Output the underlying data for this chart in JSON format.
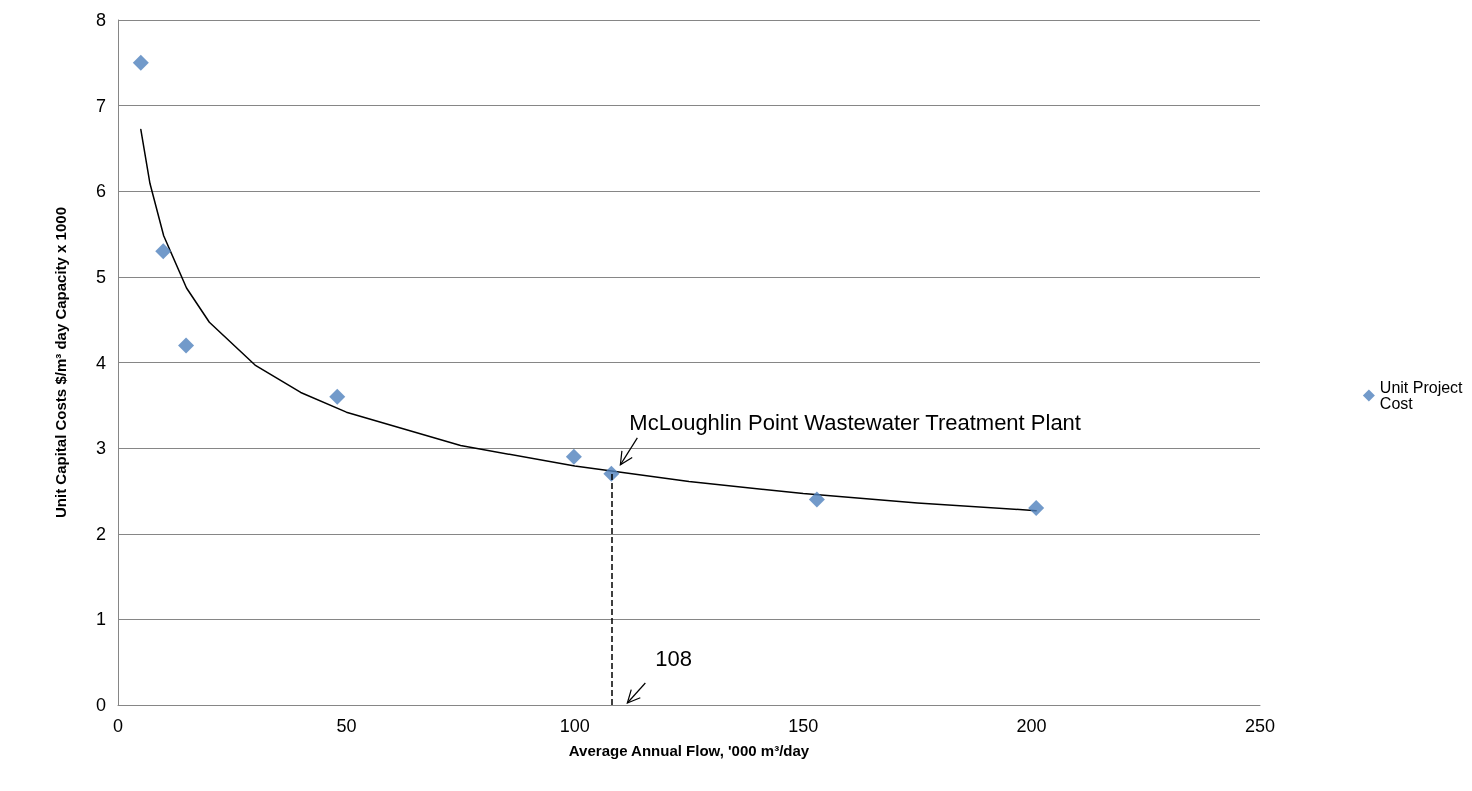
{
  "chart_data": {
    "type": "scatter",
    "xlabel": "Average Annual Flow, '000 m³/day",
    "ylabel": "Unit Capital Costs $/m³ day Capacity x 1000",
    "series": [
      {
        "name": "Unit Project Cost",
        "color": "#4f81bd",
        "marker": "diamond",
        "x": [
          5,
          9.9,
          14.9,
          48,
          99.8,
          108,
          153,
          201
        ],
        "values": [
          7.5,
          5.3,
          4.2,
          3.6,
          2.9,
          2.7,
          2.4,
          2.3
        ]
      },
      {
        "type": "line",
        "color": "#000000",
        "marker": "none",
        "line_style": "solid",
        "x": [
          5,
          7,
          10,
          15,
          20,
          30,
          40,
          50,
          75,
          100,
          125,
          150,
          175,
          201
        ],
        "values": [
          6.72,
          6.09,
          5.48,
          4.87,
          4.47,
          3.97,
          3.65,
          3.42,
          3.03,
          2.79,
          2.61,
          2.47,
          2.36,
          2.27
        ]
      }
    ],
    "xlim": [
      0,
      250
    ],
    "xticks": [
      0,
      50,
      100,
      150,
      200,
      250
    ],
    "ylim": [
      0,
      8
    ],
    "yticks": [
      0,
      1,
      2,
      3,
      4,
      5,
      6,
      7,
      8
    ],
    "grid": "y",
    "legend": "right",
    "ref_lines": [
      {
        "axis": "x",
        "value": 108,
        "label": "108",
        "line_style": "dashed",
        "color": "#000000"
      }
    ],
    "annotations": [
      {
        "text": "McLoughlin Point Wastewater Treatment Plant",
        "x": 108,
        "y": 2.7
      }
    ]
  }
}
